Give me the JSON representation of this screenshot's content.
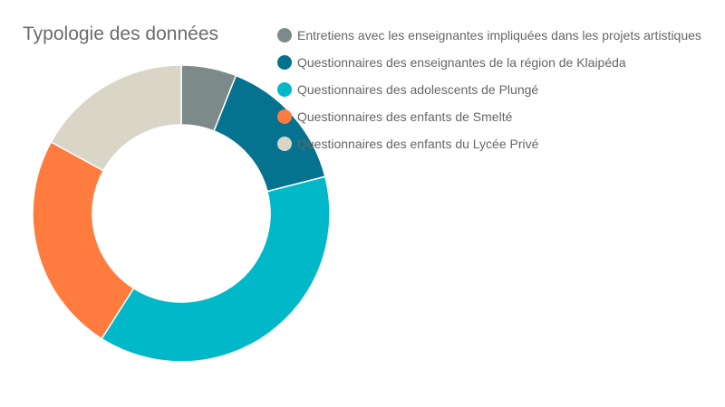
{
  "chart_data": {
    "type": "pie",
    "style": "donut",
    "title": "Typologie des données",
    "legend_position": "top-right",
    "categories": [
      "Entretiens avec les enseignantes impliquées dans les projets artistiques",
      "Questionnaires des enseignantes de la région de Klaipéda",
      "Questionnaires des adolescents de Plungé",
      "Questionnaires des enfants de Smelté",
      "Questionnaires des enfants du Lycée Privé"
    ],
    "values": [
      6,
      15,
      38,
      24,
      17
    ],
    "colors": [
      "#7c8b8a",
      "#05728f",
      "#00b8c8",
      "#ff7b3e",
      "#d9d6c8"
    ]
  }
}
